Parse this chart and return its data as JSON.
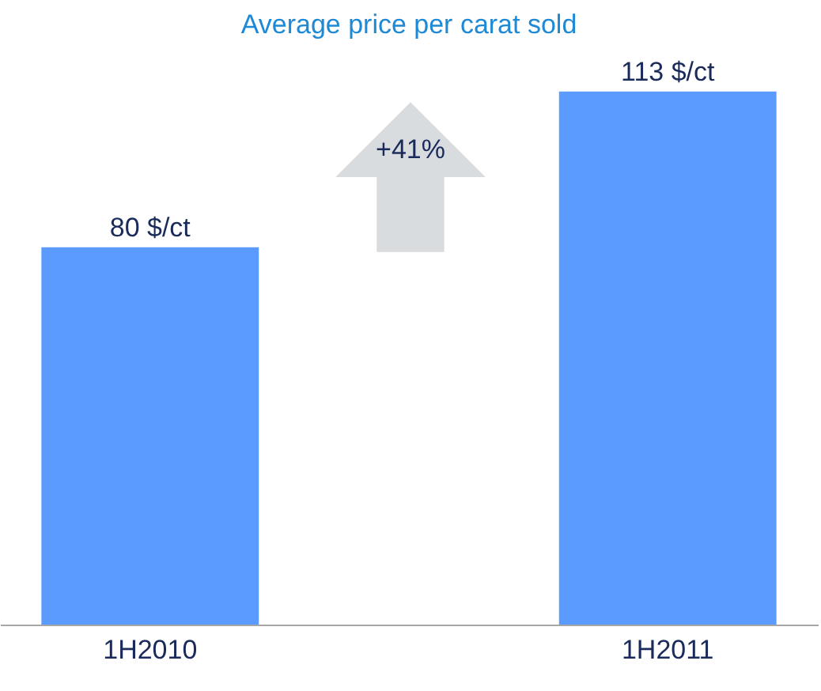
{
  "chart_data": {
    "type": "bar",
    "title": "Average price per carat sold",
    "categories": [
      "1H2010",
      "1H2011"
    ],
    "values": [
      80,
      113
    ],
    "value_labels": [
      "80 $/ct",
      "113 $/ct"
    ],
    "color": "#5b9bff",
    "annotations": [
      "+41%"
    ]
  }
}
